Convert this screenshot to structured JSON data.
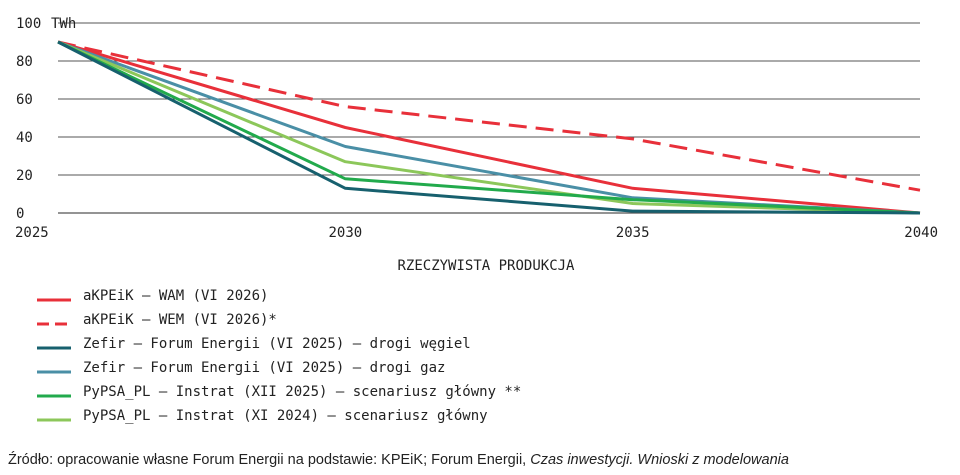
{
  "chart_data": {
    "type": "line",
    "x": [
      2025,
      2030,
      2035,
      2040
    ],
    "ylim": [
      0,
      100
    ],
    "yticks": [
      0,
      20,
      40,
      60,
      80,
      100
    ],
    "y_unit": "TWh",
    "xlabel": "RZECZYWISTA PRODUKCJA",
    "grid": true,
    "legend_position": "bottom-left",
    "series": [
      {
        "name": "aKPEiK – WAM (VI 2026)",
        "color": "#e8303a",
        "dash": false,
        "values": [
          90,
          45,
          13,
          0
        ]
      },
      {
        "name": "aKPEiK – WEM (VI 2026)*",
        "color": "#e8303a",
        "dash": true,
        "values": [
          90,
          56,
          39,
          12
        ]
      },
      {
        "name": "Zefir – Forum Energii (VI 2025) – drogi węgiel",
        "color": "#17606e",
        "dash": false,
        "values": [
          90,
          13,
          1,
          0
        ]
      },
      {
        "name": "Zefir – Forum Energii (VI 2025) – drogi gaz",
        "color": "#4a8fa6",
        "dash": false,
        "values": [
          90,
          35,
          8,
          0
        ]
      },
      {
        "name": "PyPSA_PL – Instrat (XII 2025) – scenariusz główny **",
        "color": "#22aa4c",
        "dash": false,
        "values": [
          90,
          18,
          7,
          0
        ]
      },
      {
        "name": "PyPSA_PL – Instrat (XI 2024) – scenariusz główny",
        "color": "#8cc75a",
        "dash": false,
        "values": [
          90,
          27,
          5,
          0
        ]
      }
    ]
  },
  "source": {
    "prefix": "Źródło: opracowanie własne Forum Energii na podstawie: KPEiK; Forum Energii, ",
    "italic": "Czas inwestycji. Wnioski z modelowania"
  }
}
